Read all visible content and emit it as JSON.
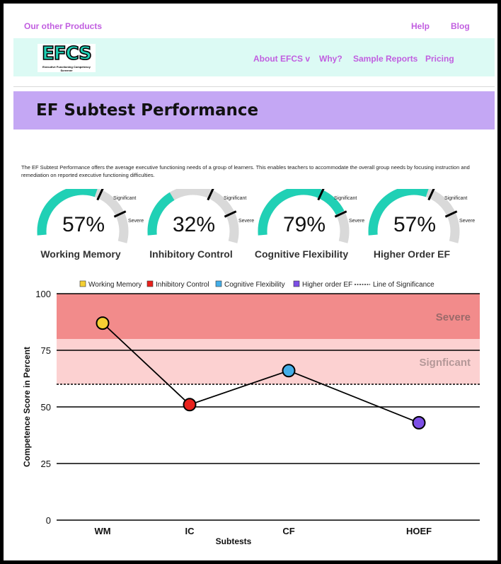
{
  "topbar": {
    "products": "Our other Products",
    "help": "Help",
    "blog": "Blog"
  },
  "nav": {
    "logo": "EFCS",
    "logo_sub": "Executive Functioning Competency Screener",
    "items": [
      "About EFCS v",
      "Why?",
      "Sample Reports",
      "Pricing"
    ]
  },
  "banner": {
    "title": "EF Subtest Performance"
  },
  "description": "The EF Subtest Performance offers the average executive functioning needs of a group of learners. This enables teachers to accommodate the overall group needs by focusing instruction and remediation on reported executive functioning difficulties.",
  "gauges": [
    {
      "percent": "57%",
      "value": 0.57,
      "label": "Working Memory",
      "significant": "Significant",
      "severe": "Severe"
    },
    {
      "percent": "32%",
      "value": 0.32,
      "label": "Inhibitory Control",
      "significant": "Significant",
      "severe": "Severe"
    },
    {
      "percent": "79%",
      "value": 0.79,
      "label": "Cognitive Flexibility",
      "significant": "Significant",
      "severe": "Severe"
    },
    {
      "percent": "57%",
      "value": 0.57,
      "label": "Higher Order EF",
      "significant": "Significant",
      "severe": "Severe"
    }
  ],
  "colors": {
    "accent": "#c15ee0",
    "gauge_fill": "#20d0b5",
    "gauge_track": "#d9d9d9",
    "severe_band": "#f28b8b",
    "significant_band": "#fcd1d1"
  },
  "chart_data": {
    "type": "line",
    "categories": [
      "WM",
      "IC",
      "CF",
      "HOEF"
    ],
    "values": [
      87,
      51,
      66,
      43
    ],
    "point_colors": [
      "#f5d033",
      "#e8211c",
      "#43aee8",
      "#7d4fe6"
    ],
    "xlabel": "Subtests",
    "ylabel": "Competence Score in Percent",
    "ylim": [
      0,
      100
    ],
    "yticks": [
      0,
      25,
      50,
      75,
      100
    ],
    "bands": [
      {
        "label": "Severe",
        "from": 80,
        "to": 100
      },
      {
        "label": "Signficant",
        "from": 60,
        "to": 80
      }
    ],
    "significance_line": 60,
    "legend": [
      "Working Memory",
      "Inhibitory Control",
      "Cognitive Flexibility",
      "Higher order  EF",
      "Line of Significance"
    ],
    "legend_position": "top",
    "grid": true
  }
}
